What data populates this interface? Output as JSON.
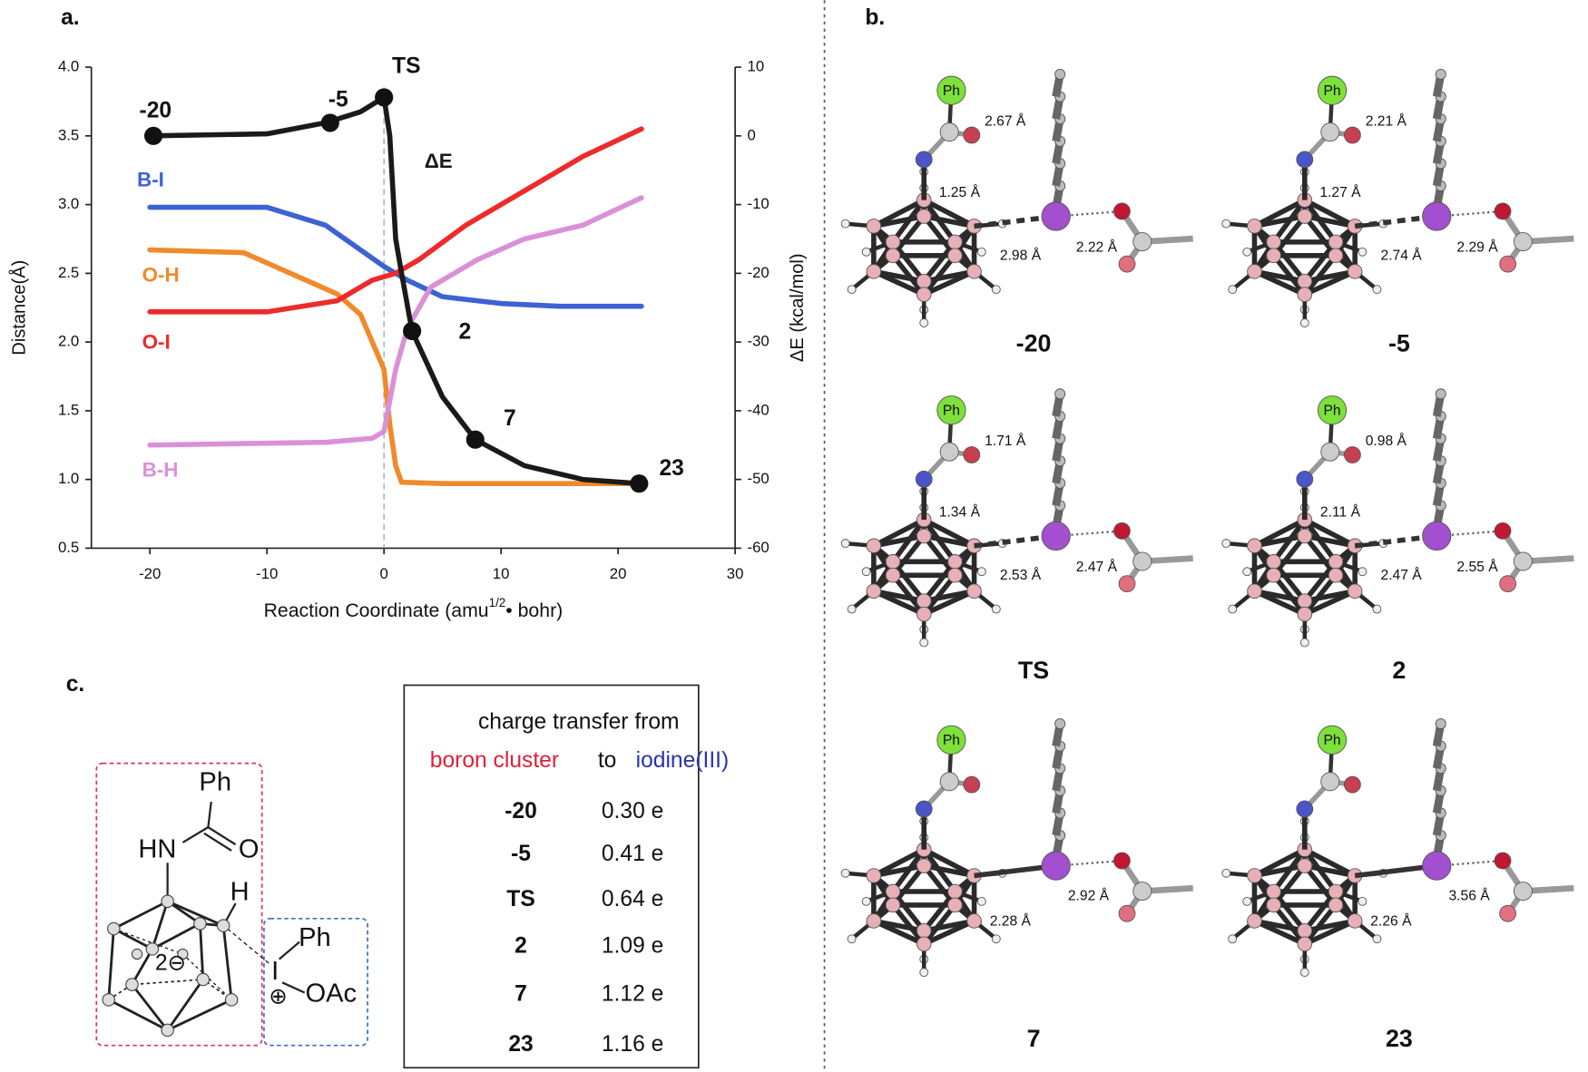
{
  "chart_data": {
    "type": "line",
    "panel_label": "a.",
    "xlabel": [
      "Reaction Coordinate (amu",
      "1/2",
      "• bohr)"
    ],
    "ylabel": "Distance(Å)",
    "y2label": "ΔE (kcal/mol)",
    "xlim": [
      -25,
      30
    ],
    "xticks": [
      -20,
      -10,
      0,
      10,
      20,
      30
    ],
    "ylim": [
      0.5,
      4
    ],
    "yticks": [
      0.5,
      {
        "value": 1,
        "label": "1.0"
      },
      1.5,
      {
        "value": 2,
        "label": "2.0"
      },
      2.5,
      {
        "value": 3,
        "label": "3.0"
      },
      3.5,
      {
        "value": 4,
        "label": "4.0"
      }
    ],
    "y2lim": [
      -60,
      10
    ],
    "y2ticks": [
      -60,
      -50,
      -40,
      -30,
      -20,
      -10,
      0,
      10
    ],
    "series": [
      {
        "name": "B-I",
        "color": "#3c62d4",
        "x": [
          -20,
          -10,
          -5,
          0,
          2,
          5,
          10,
          15,
          22
        ],
        "values": [
          2.98,
          2.98,
          2.85,
          2.55,
          2.45,
          2.33,
          2.28,
          2.26,
          2.26
        ]
      },
      {
        "name": "O-H",
        "color": "#f08a2a",
        "x": [
          -20,
          -12,
          -8,
          -4,
          -2,
          0,
          0.5,
          1,
          1.5,
          5,
          22
        ],
        "values": [
          2.67,
          2.65,
          2.5,
          2.35,
          2.2,
          1.8,
          1.4,
          1.1,
          0.98,
          0.97,
          0.97
        ]
      },
      {
        "name": "O-I",
        "color": "#ee2a2a",
        "x": [
          -20,
          -10,
          -4,
          -1,
          1,
          3,
          7,
          12,
          17,
          22
        ],
        "values": [
          2.22,
          2.22,
          2.3,
          2.45,
          2.5,
          2.6,
          2.85,
          3.1,
          3.35,
          3.55
        ]
      },
      {
        "name": "B-H",
        "color": "#da90d8",
        "x": [
          -20,
          -5,
          -1,
          0,
          1,
          2,
          4,
          8,
          12,
          17,
          22
        ],
        "values": [
          1.25,
          1.27,
          1.3,
          1.35,
          1.8,
          2.1,
          2.4,
          2.6,
          2.75,
          2.85,
          3.05
        ]
      },
      {
        "name": "ΔE",
        "color": "#1a1a1a",
        "axis": "y2",
        "x": [
          -20,
          -10,
          -5,
          -2,
          0,
          0.5,
          1,
          1.5,
          2.4,
          5,
          7.8,
          12,
          17,
          21.8
        ],
        "values": [
          0,
          0.3,
          1.9,
          3.5,
          5.6,
          0,
          -15,
          -20,
          -28.4,
          -38,
          -44.2,
          -48,
          -50,
          -50.6
        ]
      }
    ],
    "points": [
      {
        "label": "-20",
        "x": -19.7,
        "y": 0
      },
      {
        "label": "-5",
        "x": -4.6,
        "y": 1.9
      },
      {
        "label": "TS",
        "x": 0,
        "y": 5.6
      },
      {
        "label": "2",
        "x": 2.4,
        "y": -28.4
      },
      {
        "label": "7",
        "x": 7.8,
        "y": -44.2
      },
      {
        "label": "23",
        "x": 21.8,
        "y": -50.6
      }
    ]
  },
  "panel_b": {
    "label": "b.",
    "ph": "Ph",
    "structures": [
      {
        "name": "-20",
        "distances": [
          "2.67 Å",
          "1.25 Å",
          "2.98 Å",
          "2.22 Å"
        ]
      },
      {
        "name": "-5",
        "distances": [
          "2.21 Å",
          "1.27 Å",
          "2.74 Å",
          "2.29 Å"
        ]
      },
      {
        "name": "TS",
        "distances": [
          "1.71 Å",
          "1.34 Å",
          "2.53 Å",
          "2.47 Å"
        ]
      },
      {
        "name": "2",
        "distances": [
          "0.98 Å",
          "2.11 Å",
          "2.47 Å",
          "2.55 Å"
        ]
      },
      {
        "name": "7",
        "distances": [
          "2.28 Å",
          "2.92 Å"
        ]
      },
      {
        "name": "23",
        "distances": [
          "2.26 Å",
          "3.56 Å"
        ]
      }
    ]
  },
  "panel_c": {
    "label": "c.",
    "scheme": {
      "ph_top": "Ph",
      "hn": "HN",
      "o": "O",
      "h": "H",
      "charge": "2⊖",
      "ph_right": "Ph",
      "iodine": "I",
      "plus": "⊕",
      "oac": "OAc"
    },
    "table": {
      "title": "charge transfer from",
      "from": "boron cluster",
      "to": "to",
      "target": "iodine(III)",
      "rows": [
        [
          "-20",
          "0.30 e"
        ],
        [
          "-5",
          "0.41 e"
        ],
        [
          "TS",
          "0.64 e"
        ],
        [
          "2",
          "1.09 e"
        ],
        [
          "7",
          "1.12 e"
        ],
        [
          "23",
          "1.16 e"
        ]
      ]
    }
  }
}
